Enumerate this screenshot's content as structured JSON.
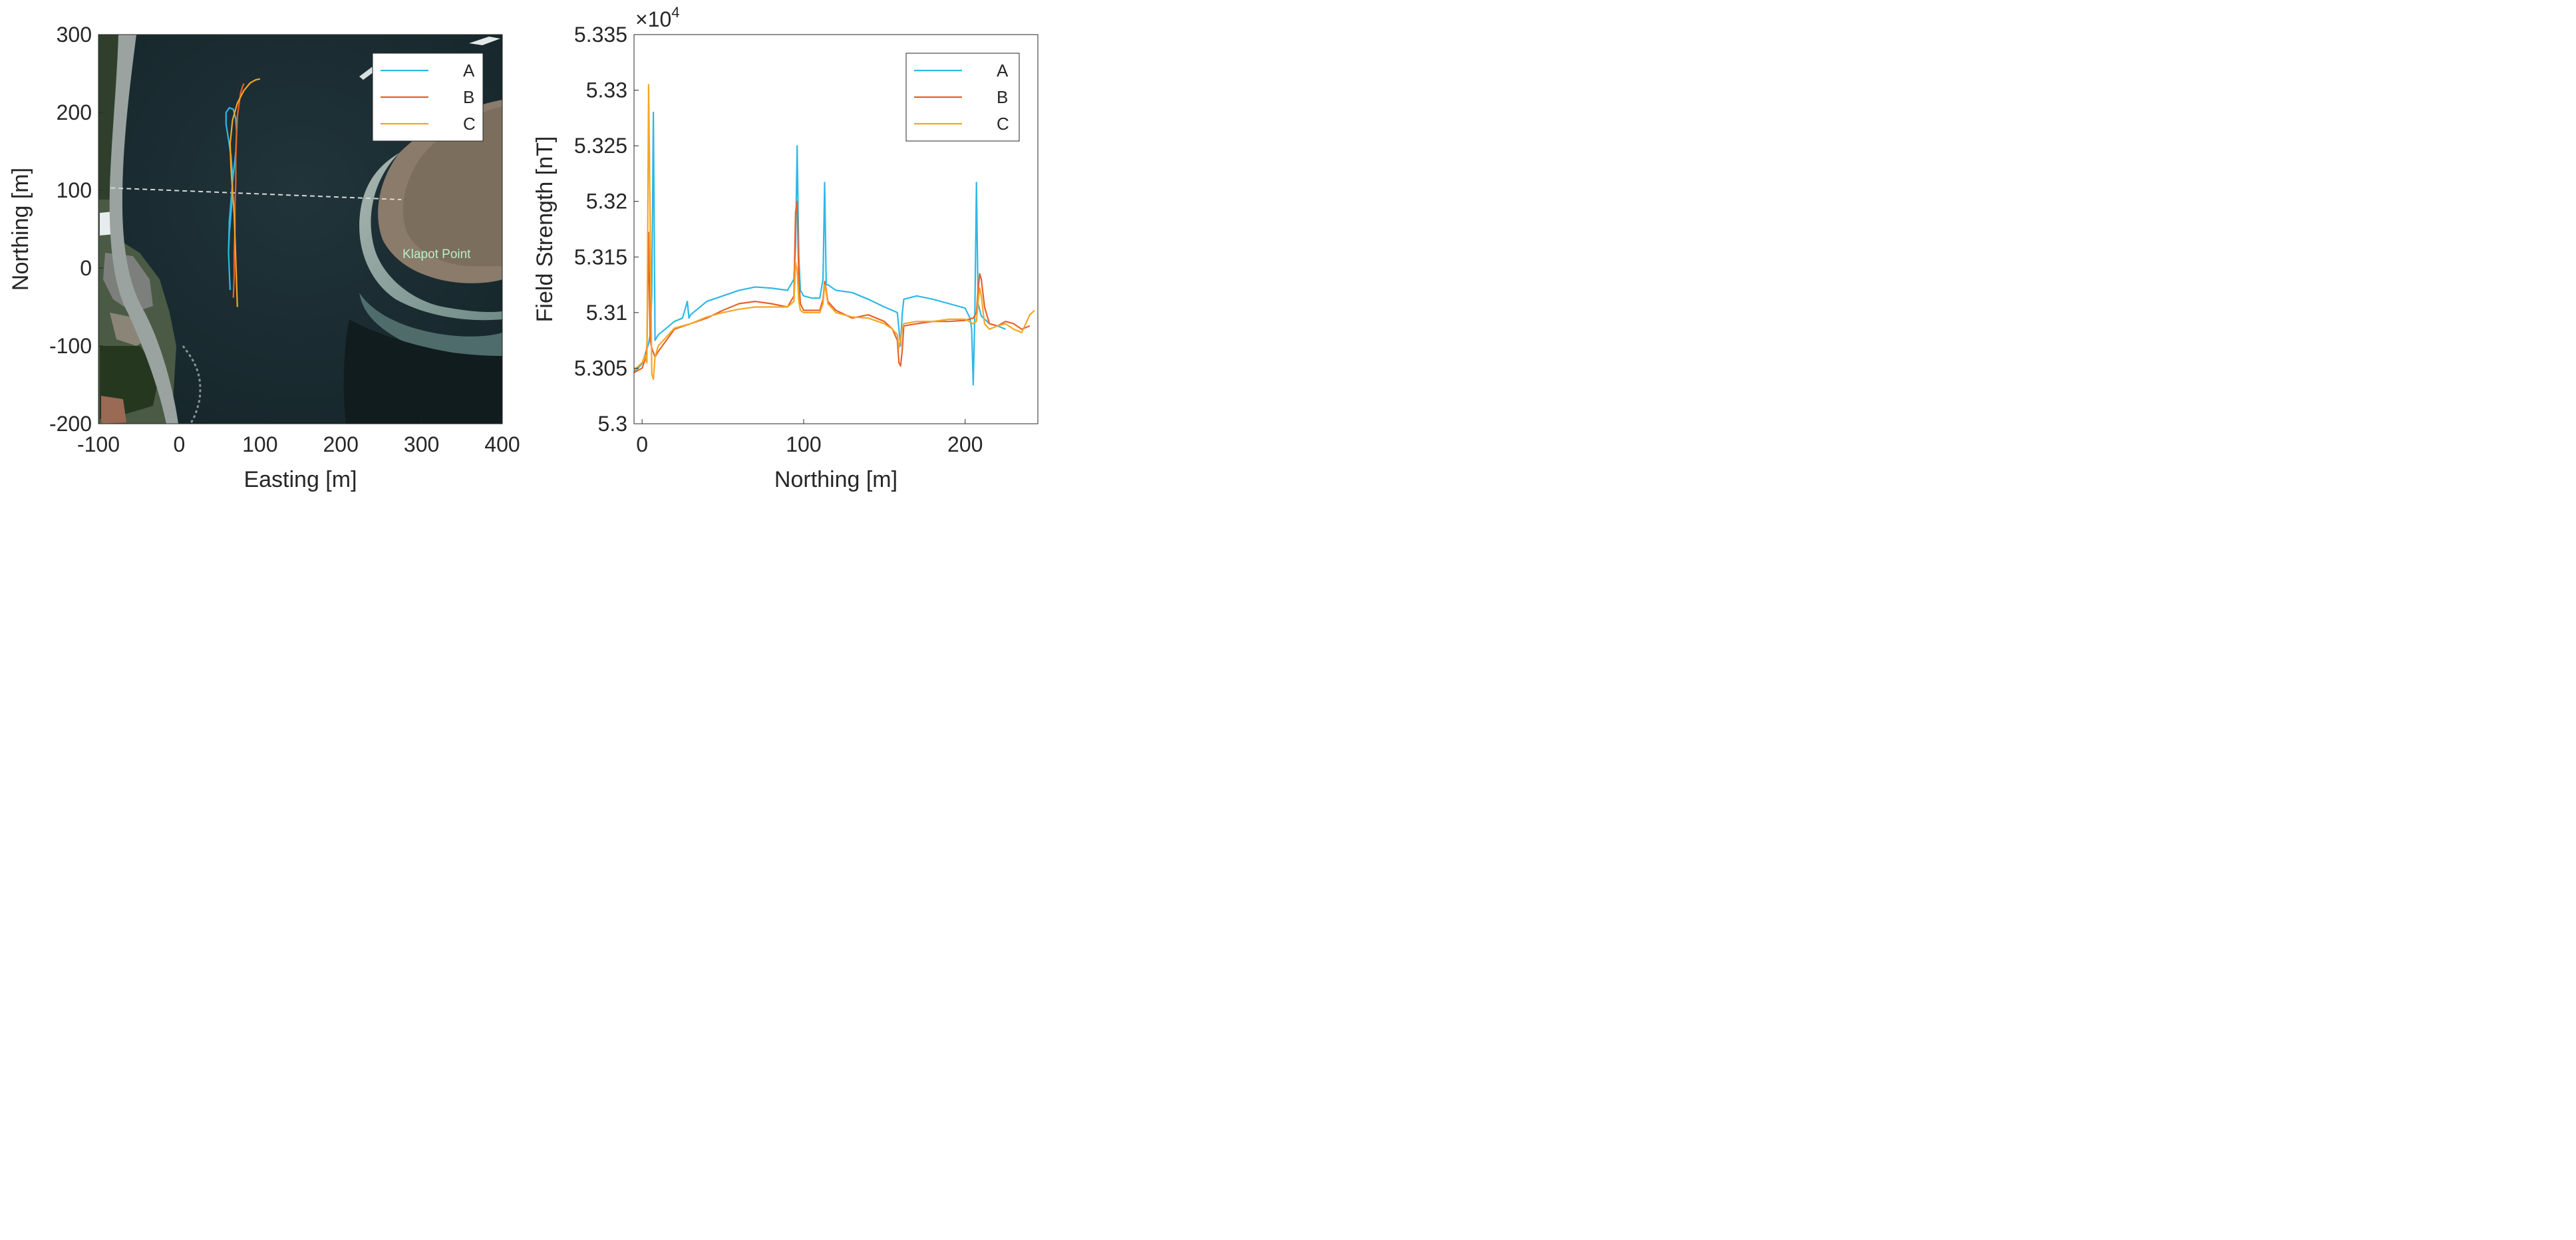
{
  "chart_data": [
    {
      "type": "line",
      "background": "satellite-image",
      "xlabel": "Easting [m]",
      "ylabel": "Northing [m]",
      "xlim": [
        -100,
        400
      ],
      "ylim": [
        -200,
        300
      ],
      "xticks": [
        "-100",
        "0",
        "100",
        "200",
        "300",
        "400"
      ],
      "yticks": [
        "-200",
        "-100",
        "0",
        "100",
        "200",
        "300"
      ],
      "legend": "top-right",
      "annotation": "Klapot Point",
      "series": [
        {
          "name": "A",
          "color": "#2eb8e6",
          "x": [
            63,
            62,
            61,
            62,
            64,
            66,
            66,
            64,
            61,
            58,
            58,
            62,
            67,
            70,
            71,
            70,
            66,
            62,
            61
          ],
          "y": [
            -28,
            -5,
            20,
            45,
            70,
            95,
            120,
            145,
            165,
            185,
            200,
            206,
            204,
            192,
            175,
            150,
            110,
            60,
            20
          ]
        },
        {
          "name": "B",
          "color": "#e8622a",
          "x": [
            67,
            68,
            68,
            69,
            69,
            70,
            70,
            71,
            72,
            74,
            76,
            78,
            80
          ],
          "y": [
            -38,
            -10,
            20,
            50,
            80,
            110,
            140,
            170,
            195,
            210,
            225,
            232,
            237
          ]
        },
        {
          "name": "C",
          "color": "#f5a623",
          "x": [
            72,
            71,
            70,
            69,
            68,
            66,
            64,
            63,
            66,
            72,
            80,
            88,
            95,
            100
          ],
          "y": [
            -50,
            -20,
            10,
            40,
            70,
            100,
            130,
            160,
            190,
            212,
            228,
            238,
            242,
            243
          ]
        }
      ],
      "dashed_line": {
        "x": [
          -85,
          275
        ],
        "y": [
          103,
          88
        ]
      }
    },
    {
      "type": "line",
      "xlabel": "Northing [m]",
      "ylabel": "Field Strength [nT]",
      "exponent_label": "×10",
      "exponent_power": "4",
      "xlim": [
        -5,
        245
      ],
      "ylim": [
        5.3,
        5.335
      ],
      "xticks": [
        "0",
        "100",
        "200"
      ],
      "yticks": [
        "5.3",
        "5.305",
        "5.31",
        "5.315",
        "5.32",
        "5.325",
        "5.33",
        "5.335"
      ],
      "legend": "top-right",
      "series": [
        {
          "name": "A",
          "color": "#2eb8e6",
          "x": [
            -5,
            0,
            4,
            5,
            6,
            7,
            8,
            10,
            15,
            20,
            25,
            27,
            28,
            29,
            30,
            40,
            50,
            60,
            70,
            80,
            90,
            94,
            95,
            96,
            97,
            98,
            100,
            105,
            110,
            112,
            113,
            114,
            115,
            120,
            130,
            140,
            150,
            155,
            158,
            159,
            160,
            161,
            162,
            170,
            180,
            190,
            200,
            203,
            204,
            205,
            206,
            207,
            208,
            210,
            215,
            220,
            225
          ],
          "y": [
            5.3046,
            5.3054,
            5.3072,
            5.308,
            5.3115,
            5.328,
            5.3075,
            5.308,
            5.3086,
            5.3092,
            5.3095,
            5.3105,
            5.311,
            5.3095,
            5.3098,
            5.311,
            5.3115,
            5.312,
            5.3123,
            5.3122,
            5.312,
            5.313,
            5.316,
            5.325,
            5.315,
            5.312,
            5.3115,
            5.3113,
            5.3113,
            5.313,
            5.3217,
            5.3125,
            5.3125,
            5.312,
            5.3118,
            5.3112,
            5.3105,
            5.3102,
            5.31,
            5.3085,
            5.307,
            5.3098,
            5.3112,
            5.3115,
            5.3112,
            5.3108,
            5.3104,
            5.3095,
            5.3085,
            5.3035,
            5.31,
            5.3217,
            5.3108,
            5.3097,
            5.309,
            5.3088,
            5.3085
          ]
        },
        {
          "name": "B",
          "color": "#e8622a",
          "x": [
            -5,
            0,
            2,
            3,
            4,
            5,
            6,
            8,
            10,
            15,
            20,
            30,
            40,
            50,
            60,
            70,
            80,
            90,
            94,
            95,
            96,
            97,
            98,
            100,
            110,
            112,
            113,
            114,
            115,
            120,
            130,
            140,
            150,
            155,
            158,
            159,
            160,
            161,
            162,
            170,
            180,
            190,
            200,
            205,
            207,
            208,
            209,
            210,
            212,
            215,
            220,
            225,
            230,
            235,
            240
          ],
          "y": [
            5.3046,
            5.305,
            5.3058,
            5.307,
            5.3172,
            5.3075,
            5.3068,
            5.306,
            5.3065,
            5.3075,
            5.3085,
            5.309,
            5.3095,
            5.3102,
            5.3108,
            5.311,
            5.3108,
            5.3105,
            5.3115,
            5.319,
            5.32,
            5.313,
            5.3108,
            5.3102,
            5.3102,
            5.3112,
            5.3128,
            5.312,
            5.311,
            5.3102,
            5.3095,
            5.3098,
            5.3092,
            5.3085,
            5.3075,
            5.3055,
            5.3052,
            5.3065,
            5.3088,
            5.309,
            5.3092,
            5.3092,
            5.3093,
            5.3095,
            5.31,
            5.312,
            5.3135,
            5.313,
            5.3105,
            5.309,
            5.3088,
            5.3092,
            5.309,
            5.3085,
            5.3088
          ]
        },
        {
          "name": "C",
          "color": "#f5a623",
          "x": [
            -5,
            0,
            2,
            3,
            4,
            5,
            6,
            7,
            8,
            10,
            15,
            20,
            30,
            40,
            50,
            60,
            70,
            80,
            90,
            94,
            95,
            96,
            97,
            98,
            100,
            110,
            112,
            113,
            114,
            115,
            120,
            130,
            140,
            150,
            155,
            158,
            159,
            160,
            161,
            162,
            170,
            180,
            190,
            200,
            205,
            207,
            208,
            209,
            210,
            212,
            215,
            220,
            225,
            230,
            235,
            240,
            243
          ],
          "y": [
            5.3048,
            5.3055,
            5.3062,
            5.3055,
            5.3305,
            5.318,
            5.3045,
            5.304,
            5.306,
            5.307,
            5.3078,
            5.3086,
            5.309,
            5.3096,
            5.31,
            5.3103,
            5.3105,
            5.3105,
            5.3105,
            5.311,
            5.3145,
            5.3138,
            5.311,
            5.3102,
            5.31,
            5.31,
            5.3108,
            5.3125,
            5.3118,
            5.3108,
            5.31,
            5.3096,
            5.3095,
            5.309,
            5.3085,
            5.308,
            5.3068,
            5.3075,
            5.3085,
            5.309,
            5.3092,
            5.3092,
            5.3094,
            5.3094,
            5.309,
            5.3092,
            5.311,
            5.3122,
            5.3115,
            5.309,
            5.3085,
            5.3088,
            5.309,
            5.3085,
            5.3082,
            5.3098,
            5.3102
          ]
        }
      ]
    }
  ]
}
